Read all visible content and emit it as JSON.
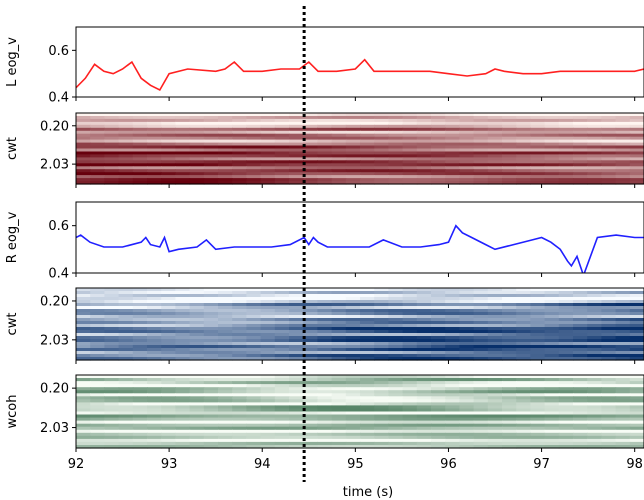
{
  "chart_data": {
    "type": "line",
    "xlabel": "time (s)",
    "x_ticks": [
      "92",
      "93",
      "94",
      "95",
      "96",
      "97",
      "98"
    ],
    "xlim": [
      92,
      98.1
    ],
    "event_marker_time": 94.45,
    "panels": [
      {
        "kind": "line",
        "ylabel": "L eog_v",
        "y_ticks": [
          "0.4",
          "0.6"
        ],
        "ylim": [
          0.4,
          0.7
        ],
        "color": "#ff2020",
        "series": {
          "x": [
            92.0,
            92.1,
            92.2,
            92.3,
            92.4,
            92.5,
            92.6,
            92.7,
            92.8,
            92.9,
            93.0,
            93.2,
            93.5,
            93.6,
            93.7,
            93.8,
            94.0,
            94.2,
            94.4,
            94.5,
            94.6,
            94.8,
            95.0,
            95.1,
            95.2,
            95.4,
            95.6,
            95.8,
            96.0,
            96.2,
            96.4,
            96.5,
            96.6,
            96.8,
            97.0,
            97.2,
            97.4,
            97.6,
            97.8,
            98.0,
            98.1
          ],
          "y": [
            0.44,
            0.48,
            0.54,
            0.51,
            0.5,
            0.52,
            0.55,
            0.48,
            0.45,
            0.43,
            0.5,
            0.52,
            0.51,
            0.52,
            0.55,
            0.51,
            0.51,
            0.52,
            0.52,
            0.55,
            0.51,
            0.51,
            0.52,
            0.56,
            0.51,
            0.51,
            0.51,
            0.51,
            0.5,
            0.49,
            0.5,
            0.52,
            0.51,
            0.5,
            0.5,
            0.51,
            0.51,
            0.51,
            0.51,
            0.51,
            0.52
          ]
        }
      },
      {
        "kind": "heatmap",
        "ylabel": "cwt",
        "y_ticks": [
          "0.20",
          "2.03"
        ],
        "color_low": "#fff5f0",
        "color_high": "#67000d"
      },
      {
        "kind": "line",
        "ylabel": "R eog_v",
        "y_ticks": [
          "0.4",
          "0.6"
        ],
        "ylim": [
          0.4,
          0.7
        ],
        "color": "#2020ff",
        "series": {
          "x": [
            92.0,
            92.05,
            92.15,
            92.3,
            92.5,
            92.7,
            92.75,
            92.8,
            92.9,
            92.95,
            93.0,
            93.1,
            93.3,
            93.4,
            93.5,
            93.7,
            93.9,
            94.1,
            94.3,
            94.45,
            94.5,
            94.55,
            94.6,
            94.7,
            94.8,
            95.0,
            95.15,
            95.3,
            95.5,
            95.7,
            95.9,
            96.0,
            96.08,
            96.15,
            96.25,
            96.4,
            96.5,
            96.7,
            96.9,
            97.0,
            97.1,
            97.2,
            97.28,
            97.32,
            97.38,
            97.45,
            97.6,
            97.8,
            98.0,
            98.1
          ],
          "y": [
            0.55,
            0.56,
            0.53,
            0.51,
            0.51,
            0.53,
            0.55,
            0.52,
            0.51,
            0.55,
            0.49,
            0.5,
            0.51,
            0.54,
            0.5,
            0.51,
            0.51,
            0.51,
            0.52,
            0.55,
            0.52,
            0.55,
            0.53,
            0.51,
            0.51,
            0.51,
            0.51,
            0.54,
            0.51,
            0.51,
            0.52,
            0.53,
            0.6,
            0.57,
            0.55,
            0.52,
            0.5,
            0.52,
            0.54,
            0.55,
            0.53,
            0.5,
            0.45,
            0.43,
            0.47,
            0.39,
            0.55,
            0.56,
            0.55,
            0.55
          ]
        }
      },
      {
        "kind": "heatmap",
        "ylabel": "cwt",
        "y_ticks": [
          "0.20",
          "2.03"
        ],
        "color_low": "#f7fbff",
        "color_high": "#08306b"
      },
      {
        "kind": "heatmap",
        "ylabel": "wcoh",
        "y_ticks": [
          "0.20",
          "2.03"
        ],
        "color_low": "#f7fcf5",
        "color_high": "#00441b"
      }
    ]
  }
}
